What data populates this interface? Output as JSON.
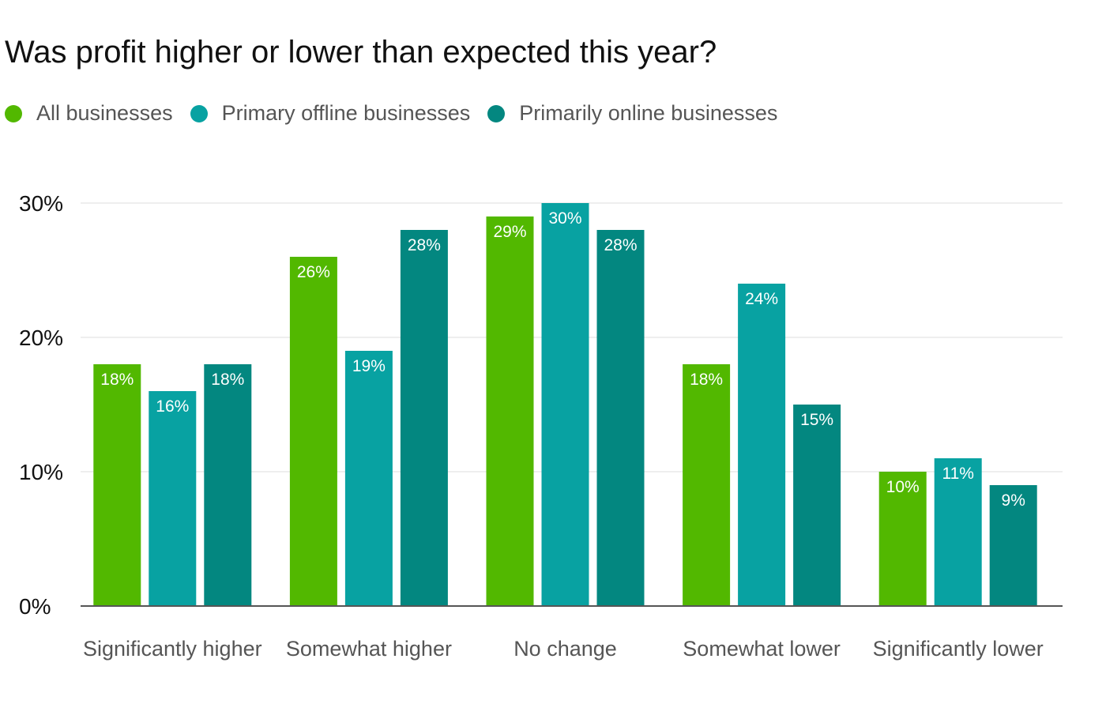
{
  "chart_data": {
    "type": "bar",
    "title": "Was profit higher or lower than expected this year?",
    "categories": [
      "Significantly higher",
      "Somewhat higher",
      "No change",
      "Somewhat lower",
      "Significantly lower"
    ],
    "series": [
      {
        "name": "All businesses",
        "color": "#52b800",
        "values": [
          18,
          26,
          29,
          18,
          10
        ]
      },
      {
        "name": "Primary offline businesses",
        "color": "#08a2a2",
        "values": [
          16,
          19,
          30,
          24,
          11
        ]
      },
      {
        "name": "Primarily online businesses",
        "color": "#038780",
        "values": [
          18,
          28,
          28,
          15,
          9
        ]
      }
    ],
    "ylim": [
      0,
      30
    ],
    "yticks": [
      0,
      10,
      20,
      30
    ],
    "ytick_suffix": "%",
    "value_label_suffix": "%",
    "grid": true,
    "legend_position": "top-left"
  }
}
